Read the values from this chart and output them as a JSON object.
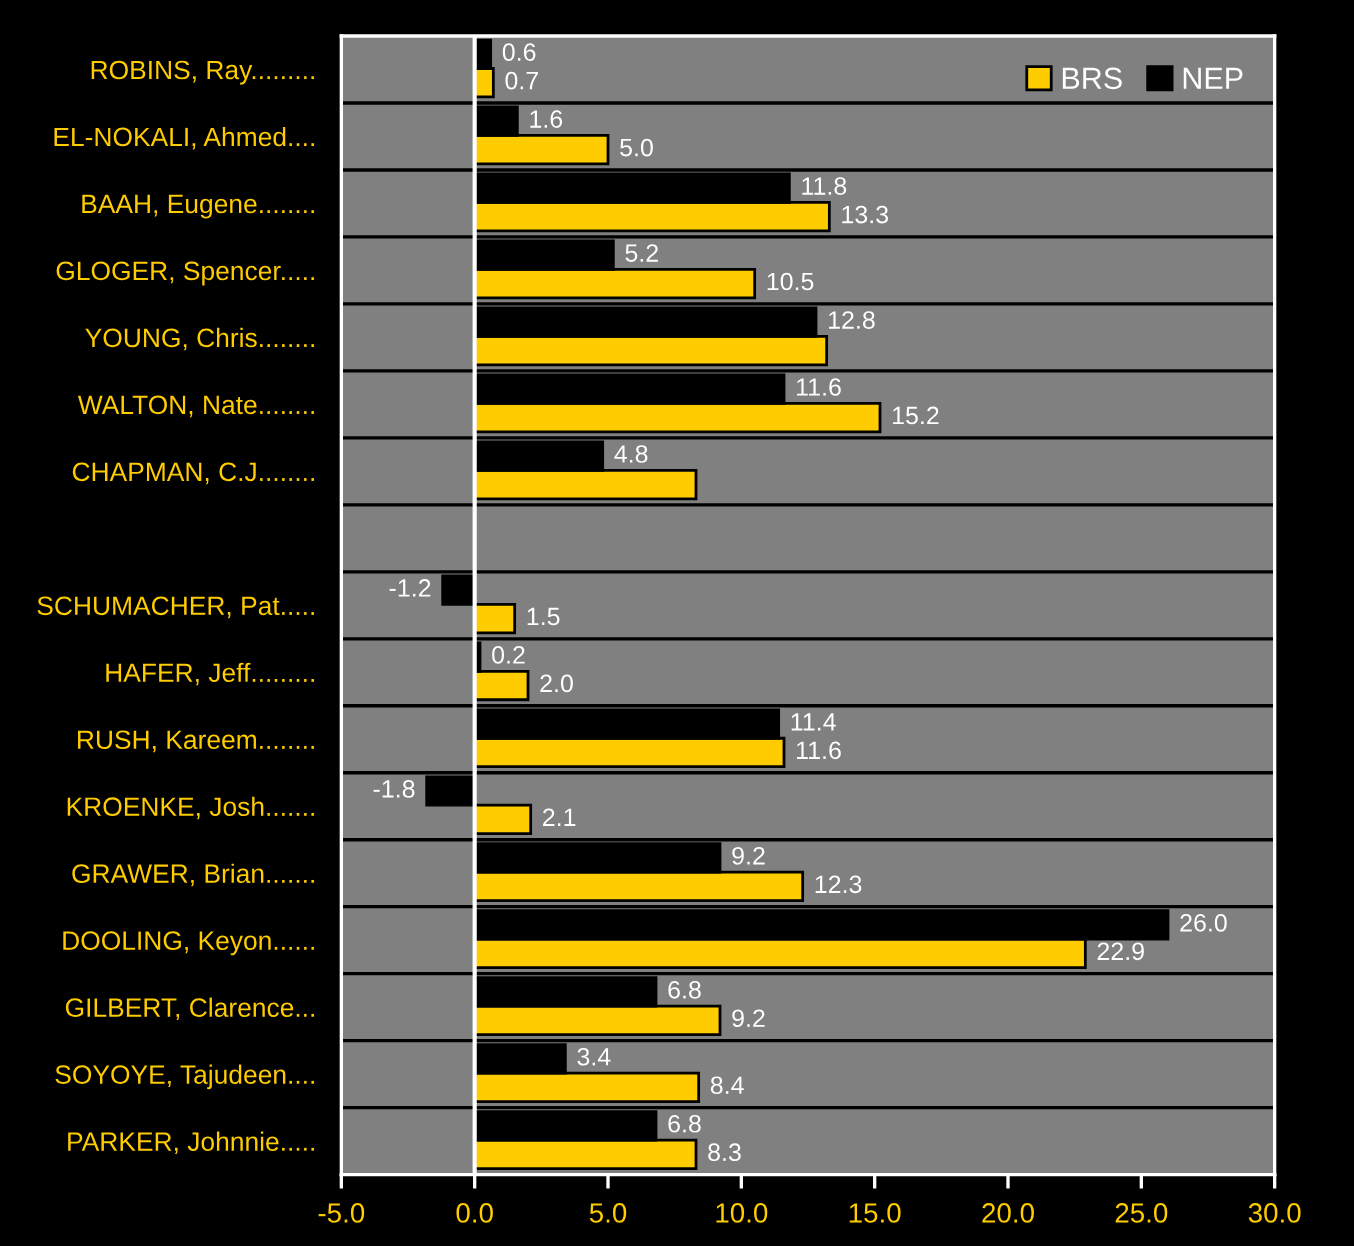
{
  "chart_data": {
    "type": "bar",
    "orientation": "horizontal",
    "categories": [
      "ROBINS, Ray.........",
      "EL-NOKALI, Ahmed....",
      "BAAH, Eugene........",
      "GLOGER, Spencer.....",
      "YOUNG, Chris........",
      "WALTON, Nate........",
      "CHAPMAN, C.J........",
      null,
      "SCHUMACHER, Pat.....",
      "HAFER, Jeff.........",
      "RUSH, Kareem........",
      "KROENKE, Josh.......",
      "GRAWER, Brian.......",
      "DOOLING, Keyon......",
      "GILBERT, Clarence...",
      "SOYOYE, Tajudeen....",
      "PARKER, Johnnie....."
    ],
    "series": [
      {
        "name": "BRS",
        "color": "#ffcc00",
        "values": [
          0.7,
          5.0,
          13.3,
          10.5,
          13.2,
          15.2,
          8.3,
          null,
          1.5,
          2.0,
          11.6,
          2.1,
          12.3,
          22.9,
          9.2,
          8.4,
          8.3
        ],
        "value_labels": [
          "0.7",
          "5.0",
          "13.3",
          "10.5",
          null,
          "15.2",
          null,
          null,
          "1.5",
          "2.0",
          "11.6",
          "2.1",
          "12.3",
          "22.9",
          "9.2",
          "8.4",
          "8.3"
        ]
      },
      {
        "name": "NEP",
        "color": "#000000",
        "values": [
          0.6,
          1.6,
          11.8,
          5.2,
          12.8,
          11.6,
          4.8,
          null,
          -1.2,
          0.2,
          11.4,
          -1.8,
          9.2,
          26.0,
          6.8,
          3.4,
          6.8
        ],
        "value_labels": [
          "0.6",
          "1.6",
          "11.8",
          "5.2",
          "12.8",
          "11.6",
          "4.8",
          null,
          "-1.2",
          "0.2",
          "11.4",
          "-1.8",
          "9.2",
          "26.0",
          "6.8",
          "3.4",
          "6.8"
        ]
      }
    ],
    "xlim": [
      -5,
      30
    ],
    "xticks": [
      {
        "value": -5,
        "label": "-5.0"
      },
      {
        "value": 0,
        "label": "0.0"
      },
      {
        "value": 5,
        "label": "5.0"
      },
      {
        "value": 10,
        "label": "10.0"
      },
      {
        "value": 15,
        "label": "15.0"
      },
      {
        "value": 20,
        "label": "20.0"
      },
      {
        "value": 25,
        "label": "25.0"
      },
      {
        "value": 30,
        "label": "30.0"
      }
    ],
    "ref_lines": [
      {
        "axis": "x",
        "value": 0,
        "color": "#ffffff"
      }
    ],
    "grid": "y",
    "legend": "top right"
  }
}
